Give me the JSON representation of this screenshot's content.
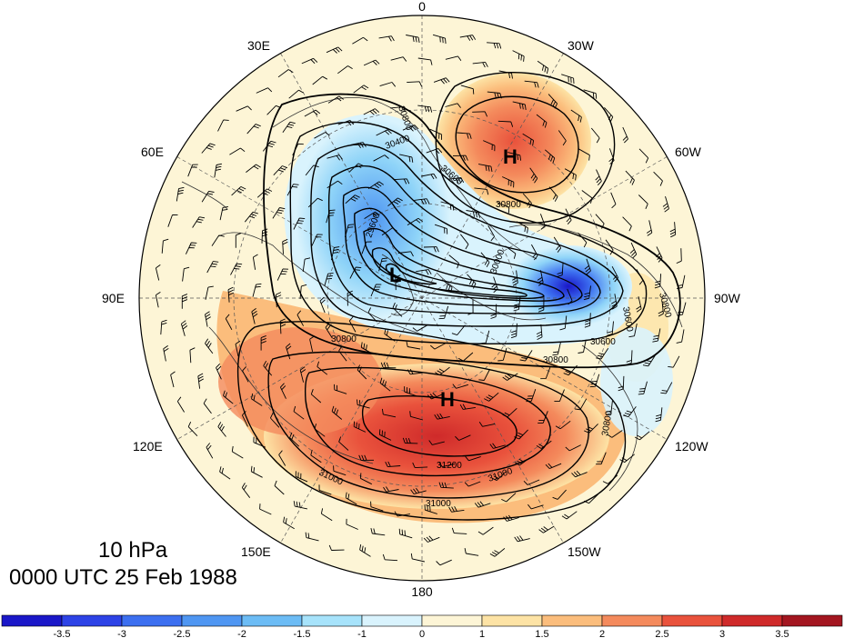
{
  "title": {
    "level": "10 hPa",
    "time": "0000 UTC 25 Feb 1988"
  },
  "longitude_labels": [
    "0",
    "30W",
    "60W",
    "90W",
    "120W",
    "150W",
    "180",
    "150E",
    "120E",
    "90E",
    "60E",
    "30E"
  ],
  "contour_labels": [
    "30800",
    "30400",
    "30600",
    "31000",
    "31200",
    "30000",
    "29600"
  ],
  "centers": [
    {
      "name": "high-atlantic",
      "label": "H"
    },
    {
      "name": "low-polar",
      "label": "L"
    },
    {
      "name": "high-pacific",
      "label": "H"
    }
  ],
  "colorbar": {
    "tick_labels": [
      "-3.5",
      "-3",
      "-2.5",
      "-2",
      "-1.5",
      "-1",
      "0",
      "1",
      "1.5",
      "2",
      "2.5",
      "3",
      "3.5"
    ],
    "colors": [
      "#1a17c8",
      "#2d43e6",
      "#3c6ff0",
      "#4f96f2",
      "#6cbcf5",
      "#a7e3fb",
      "#d9f3fd",
      "#fdf5d6",
      "#fde3a5",
      "#fbbd7c",
      "#f48a5c",
      "#e9523c",
      "#cf2a2a",
      "#a31620"
    ]
  },
  "colors": {
    "background": "#ffffff",
    "ocean_neutral": "#fdf5d6",
    "warm_anomaly": "#e9523c",
    "cold_anomaly": "#2d43e6",
    "contour": "#000000"
  }
}
